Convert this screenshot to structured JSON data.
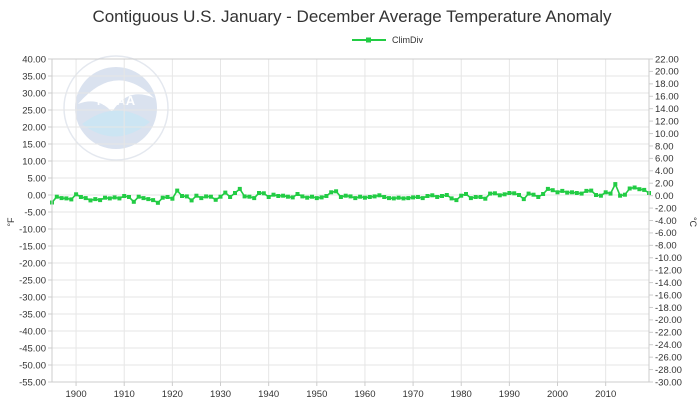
{
  "chart_data": {
    "type": "line",
    "title": "Contiguous U.S. January - December Average Temperature Anomaly",
    "legend": {
      "label": "ClimDiv",
      "placement": "top-center"
    },
    "series": [
      {
        "name": "ClimDiv",
        "color": "#22cc44",
        "x": [
          1895,
          1896,
          1897,
          1898,
          1899,
          1900,
          1901,
          1902,
          1903,
          1904,
          1905,
          1906,
          1907,
          1908,
          1909,
          1910,
          1911,
          1912,
          1913,
          1914,
          1915,
          1916,
          1917,
          1918,
          1919,
          1920,
          1921,
          1922,
          1923,
          1924,
          1925,
          1926,
          1927,
          1928,
          1929,
          1930,
          1931,
          1932,
          1933,
          1934,
          1935,
          1936,
          1937,
          1938,
          1939,
          1940,
          1941,
          1942,
          1943,
          1944,
          1945,
          1946,
          1947,
          1948,
          1949,
          1950,
          1951,
          1952,
          1953,
          1954,
          1955,
          1956,
          1957,
          1958,
          1959,
          1960,
          1961,
          1962,
          1963,
          1964,
          1965,
          1966,
          1967,
          1968,
          1969,
          1970,
          1971,
          1972,
          1973,
          1974,
          1975,
          1976,
          1977,
          1978,
          1979,
          1980,
          1981,
          1982,
          1983,
          1984,
          1985,
          1986,
          1987,
          1988,
          1989,
          1990,
          1991,
          1992,
          1993,
          1994,
          1995,
          1996,
          1997,
          1998,
          1999,
          2000,
          2001,
          2002,
          2003,
          2004,
          2005,
          2006,
          2007,
          2008,
          2009,
          2010,
          2011,
          2012,
          2013,
          2014,
          2015,
          2016,
          2017,
          2018,
          2019
        ],
        "y": [
          -2.2,
          -0.5,
          -0.9,
          -1.0,
          -1.3,
          0.2,
          -0.6,
          -0.9,
          -1.6,
          -1.2,
          -1.5,
          -0.8,
          -1.0,
          -0.7,
          -1.0,
          -0.3,
          -0.6,
          -2.0,
          -0.5,
          -0.9,
          -1.2,
          -1.5,
          -2.3,
          -0.8,
          -0.6,
          -1.1,
          1.3,
          -0.3,
          -0.4,
          -1.6,
          -0.2,
          -0.9,
          -0.4,
          -0.5,
          -1.4,
          -0.5,
          0.7,
          -0.6,
          0.6,
          1.8,
          -0.4,
          -0.5,
          -0.9,
          0.6,
          0.5,
          -0.6,
          0.1,
          -0.3,
          -0.2,
          -0.5,
          -0.7,
          0.3,
          -0.4,
          -0.8,
          -0.5,
          -0.9,
          -0.7,
          -0.3,
          0.8,
          1.1,
          -0.6,
          -0.2,
          -0.4,
          -0.9,
          -0.5,
          -0.8,
          -0.6,
          -0.4,
          -0.1,
          -0.6,
          -0.9,
          -1.0,
          -0.8,
          -1.0,
          -0.9,
          -0.7,
          -0.6,
          -0.9,
          -0.3,
          -0.1,
          -0.6,
          -0.3,
          0.0,
          -1.0,
          -1.5,
          -0.2,
          0.3,
          -0.9,
          -0.6,
          -0.6,
          -1.1,
          0.4,
          0.5,
          -0.1,
          0.2,
          0.6,
          0.5,
          0.0,
          -1.2,
          0.4,
          0.1,
          -0.6,
          0.3,
          1.8,
          1.4,
          0.8,
          1.2,
          0.7,
          0.8,
          0.6,
          0.4,
          1.2,
          1.3,
          0.0,
          -0.2,
          0.8,
          0.4,
          3.2,
          -0.2,
          0.1,
          1.9,
          2.2,
          1.7,
          1.5,
          0.6
        ],
        "marker": "square"
      }
    ],
    "xlim": [
      1895,
      2019
    ],
    "ylim_left": [
      -55,
      40
    ],
    "ylim_right": [
      -30,
      22
    ],
    "xticks": [
      1900,
      1910,
      1920,
      1930,
      1940,
      1950,
      1960,
      1970,
      1980,
      1990,
      2000,
      2010
    ],
    "yticks_left": [
      "40.00",
      "35.00",
      "30.00",
      "25.00",
      "20.00",
      "15.00",
      "10.00",
      "5.00",
      "0.00",
      "-5.00",
      "-10.00",
      "-15.00",
      "-20.00",
      "-25.00",
      "-30.00",
      "-35.00",
      "-40.00",
      "-45.00",
      "-50.00",
      "-55.00"
    ],
    "yticks_right": [
      "22.00",
      "20.00",
      "18.00",
      "16.00",
      "14.00",
      "12.00",
      "10.00",
      "8.00",
      "6.00",
      "4.00",
      "2.00",
      "0.00",
      "-2.00",
      "-4.00",
      "-6.00",
      "-8.00",
      "-10.00",
      "-12.00",
      "-14.00",
      "-16.00",
      "-18.00",
      "-20.00",
      "-22.00",
      "-24.00",
      "-26.00",
      "-28.00",
      "-30.00"
    ],
    "ylabel_left": "°F",
    "ylabel_right": "°C",
    "grid": true
  },
  "watermark": {
    "logo_text": "NOAA",
    "ring_text": "NATIONAL OCEANIC AND ATMOSPHERIC ADMINISTRATION · U.S. DEPARTMENT OF COMMERCE"
  }
}
